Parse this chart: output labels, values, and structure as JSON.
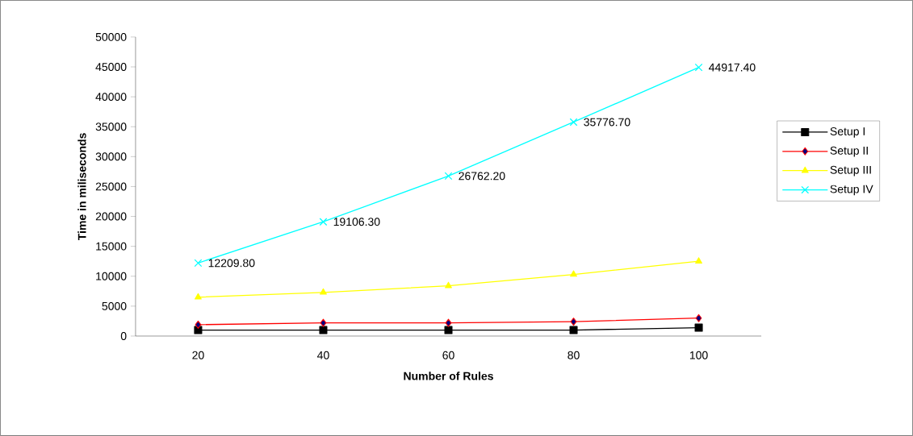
{
  "chart_data": {
    "type": "line",
    "xlabel": "Number of Rules",
    "ylabel": "Time in miliseconds",
    "categories": [
      "20",
      "40",
      "60",
      "80",
      "100"
    ],
    "ylim": [
      0,
      50000
    ],
    "yticks": [
      0,
      5000,
      10000,
      15000,
      20000,
      25000,
      30000,
      35000,
      40000,
      45000,
      50000
    ],
    "grid": false,
    "legend": "right",
    "line_style": "solid",
    "series": [
      {
        "name": "Setup I",
        "color": "#000000",
        "marker": "square",
        "values": [
          1000,
          1000,
          1000,
          1000,
          1400
        ]
      },
      {
        "name": "Setup II",
        "color": "#ff0000",
        "marker": "diamond",
        "values": [
          1900,
          2200,
          2200,
          2400,
          3000
        ]
      },
      {
        "name": "Setup III",
        "color": "#ffff00",
        "marker": "triangle",
        "values": [
          6500,
          7300,
          8400,
          10300,
          12500
        ]
      },
      {
        "name": "Setup IV",
        "color": "#00ffff",
        "marker": "cross",
        "values": [
          12209.8,
          19106.3,
          26762.2,
          35776.7,
          44917.4
        ],
        "value_labels": [
          "12209.80",
          "19106.30",
          "26762.20",
          "35776.70",
          "44917.40"
        ]
      }
    ]
  }
}
